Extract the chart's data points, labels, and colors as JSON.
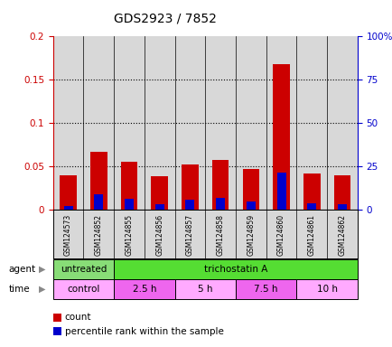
{
  "title": "GDS2923 / 7852",
  "samples": [
    "GSM124573",
    "GSM124852",
    "GSM124855",
    "GSM124856",
    "GSM124857",
    "GSM124858",
    "GSM124859",
    "GSM124860",
    "GSM124861",
    "GSM124862"
  ],
  "count_values": [
    0.04,
    0.067,
    0.056,
    0.039,
    0.052,
    0.058,
    0.047,
    0.168,
    0.042,
    0.04
  ],
  "percentile_values": [
    0.005,
    0.018,
    0.013,
    0.007,
    0.012,
    0.014,
    0.01,
    0.043,
    0.008,
    0.007
  ],
  "left_ylim": [
    0,
    0.2
  ],
  "right_ylim": [
    0,
    100
  ],
  "left_yticks": [
    0,
    0.05,
    0.1,
    0.15,
    0.2
  ],
  "left_yticklabels": [
    "0",
    "0.05",
    "0.1",
    "0.15",
    "0.2"
  ],
  "right_yticks": [
    0,
    25,
    50,
    75,
    100
  ],
  "right_yticklabels": [
    "0",
    "25",
    "50",
    "75",
    "100%"
  ],
  "count_color": "#cc0000",
  "percentile_color": "#0000cc",
  "bar_width": 0.55,
  "percentile_bar_width": 0.3,
  "agent_labels": [
    {
      "text": "untreated",
      "span": [
        0,
        2
      ],
      "color": "#88dd77"
    },
    {
      "text": "trichostatin A",
      "span": [
        2,
        10
      ],
      "color": "#55dd33"
    }
  ],
  "time_labels": [
    {
      "text": "control",
      "span": [
        0,
        2
      ],
      "color": "#ffaaff"
    },
    {
      "text": "2.5 h",
      "span": [
        2,
        4
      ],
      "color": "#ee66ee"
    },
    {
      "text": "5 h",
      "span": [
        4,
        6
      ],
      "color": "#ffaaff"
    },
    {
      "text": "7.5 h",
      "span": [
        6,
        8
      ],
      "color": "#ee66ee"
    },
    {
      "text": "10 h",
      "span": [
        8,
        10
      ],
      "color": "#ffaaff"
    }
  ],
  "bg_color": "#ffffff",
  "tick_label_color_left": "#cc0000",
  "tick_label_color_right": "#0000cc",
  "grid_color": "#000000",
  "bar_area_bg": "#d8d8d8",
  "agent_row_label": "agent",
  "time_row_label": "time"
}
